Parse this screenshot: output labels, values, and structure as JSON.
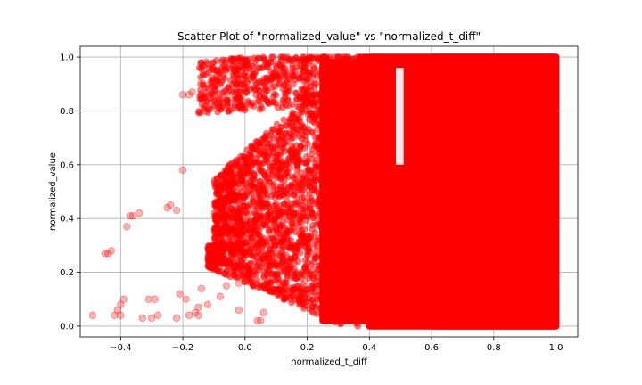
{
  "chart_data": {
    "type": "scatter",
    "title": "Scatter Plot of \"normalized_value\" vs \"normalized_t_diff\"",
    "xlabel": "normalized_t_diff",
    "ylabel": "normalized_value",
    "xlim": [
      -0.53,
      1.07
    ],
    "ylim": [
      -0.04,
      1.04
    ],
    "xticks": [
      -0.4,
      -0.2,
      0.0,
      0.2,
      0.4,
      0.6,
      0.8,
      1.0
    ],
    "xtick_labels": [
      "−0.4",
      "−0.2",
      "0.0",
      "0.2",
      "0.4",
      "0.6",
      "0.8",
      "1.0"
    ],
    "yticks": [
      0.0,
      0.2,
      0.4,
      0.6,
      0.8,
      1.0
    ],
    "ytick_labels": [
      "0.0",
      "0.2",
      "0.4",
      "0.6",
      "0.8",
      "1.0"
    ],
    "grid": true,
    "marker_color": "#ff0000",
    "marker_alpha": 0.3,
    "dense_regions": [
      {
        "x": [
          0.4,
          1.0
        ],
        "y": [
          0.0,
          1.0
        ]
      },
      {
        "x": [
          0.6,
          1.0
        ],
        "y": [
          0.0,
          1.0
        ]
      },
      {
        "x": [
          0.25,
          0.4
        ],
        "y": [
          0.02,
          0.98
        ]
      }
    ],
    "series": [
      {
        "x": [
          -0.49,
          -0.45,
          -0.44,
          -0.43,
          -0.42,
          -0.41,
          -0.4,
          -0.38,
          -0.4,
          -0.39,
          -0.37,
          -0.36,
          -0.34,
          -0.33,
          -0.31,
          -0.3,
          -0.29,
          -0.25,
          -0.24,
          -0.22,
          -0.21,
          -0.2,
          -0.2,
          -0.19,
          -0.18,
          -0.18,
          -0.17,
          -0.16,
          -0.15,
          -0.14,
          -0.13,
          -0.12,
          -0.12,
          -0.1,
          -0.08,
          -0.06,
          -0.05,
          -0.04,
          -0.02,
          0.0,
          0.02,
          0.04,
          0.06,
          -0.28,
          -0.22,
          -0.15,
          -0.08,
          -0.02,
          0.05
        ],
        "y": [
          0.04,
          0.27,
          0.27,
          0.28,
          0.04,
          0.06,
          0.08,
          0.37,
          0.04,
          0.1,
          0.41,
          0.41,
          0.42,
          0.03,
          0.1,
          0.03,
          0.1,
          0.44,
          0.45,
          0.43,
          0.12,
          0.58,
          0.86,
          0.1,
          0.86,
          0.04,
          0.87,
          0.05,
          0.04,
          0.14,
          0.8,
          0.81,
          0.08,
          0.82,
          0.84,
          0.15,
          0.83,
          0.86,
          0.16,
          0.81,
          0.18,
          0.02,
          0.05,
          0.04,
          0.03,
          0.07,
          0.11,
          0.06,
          0.02
        ]
      }
    ]
  }
}
